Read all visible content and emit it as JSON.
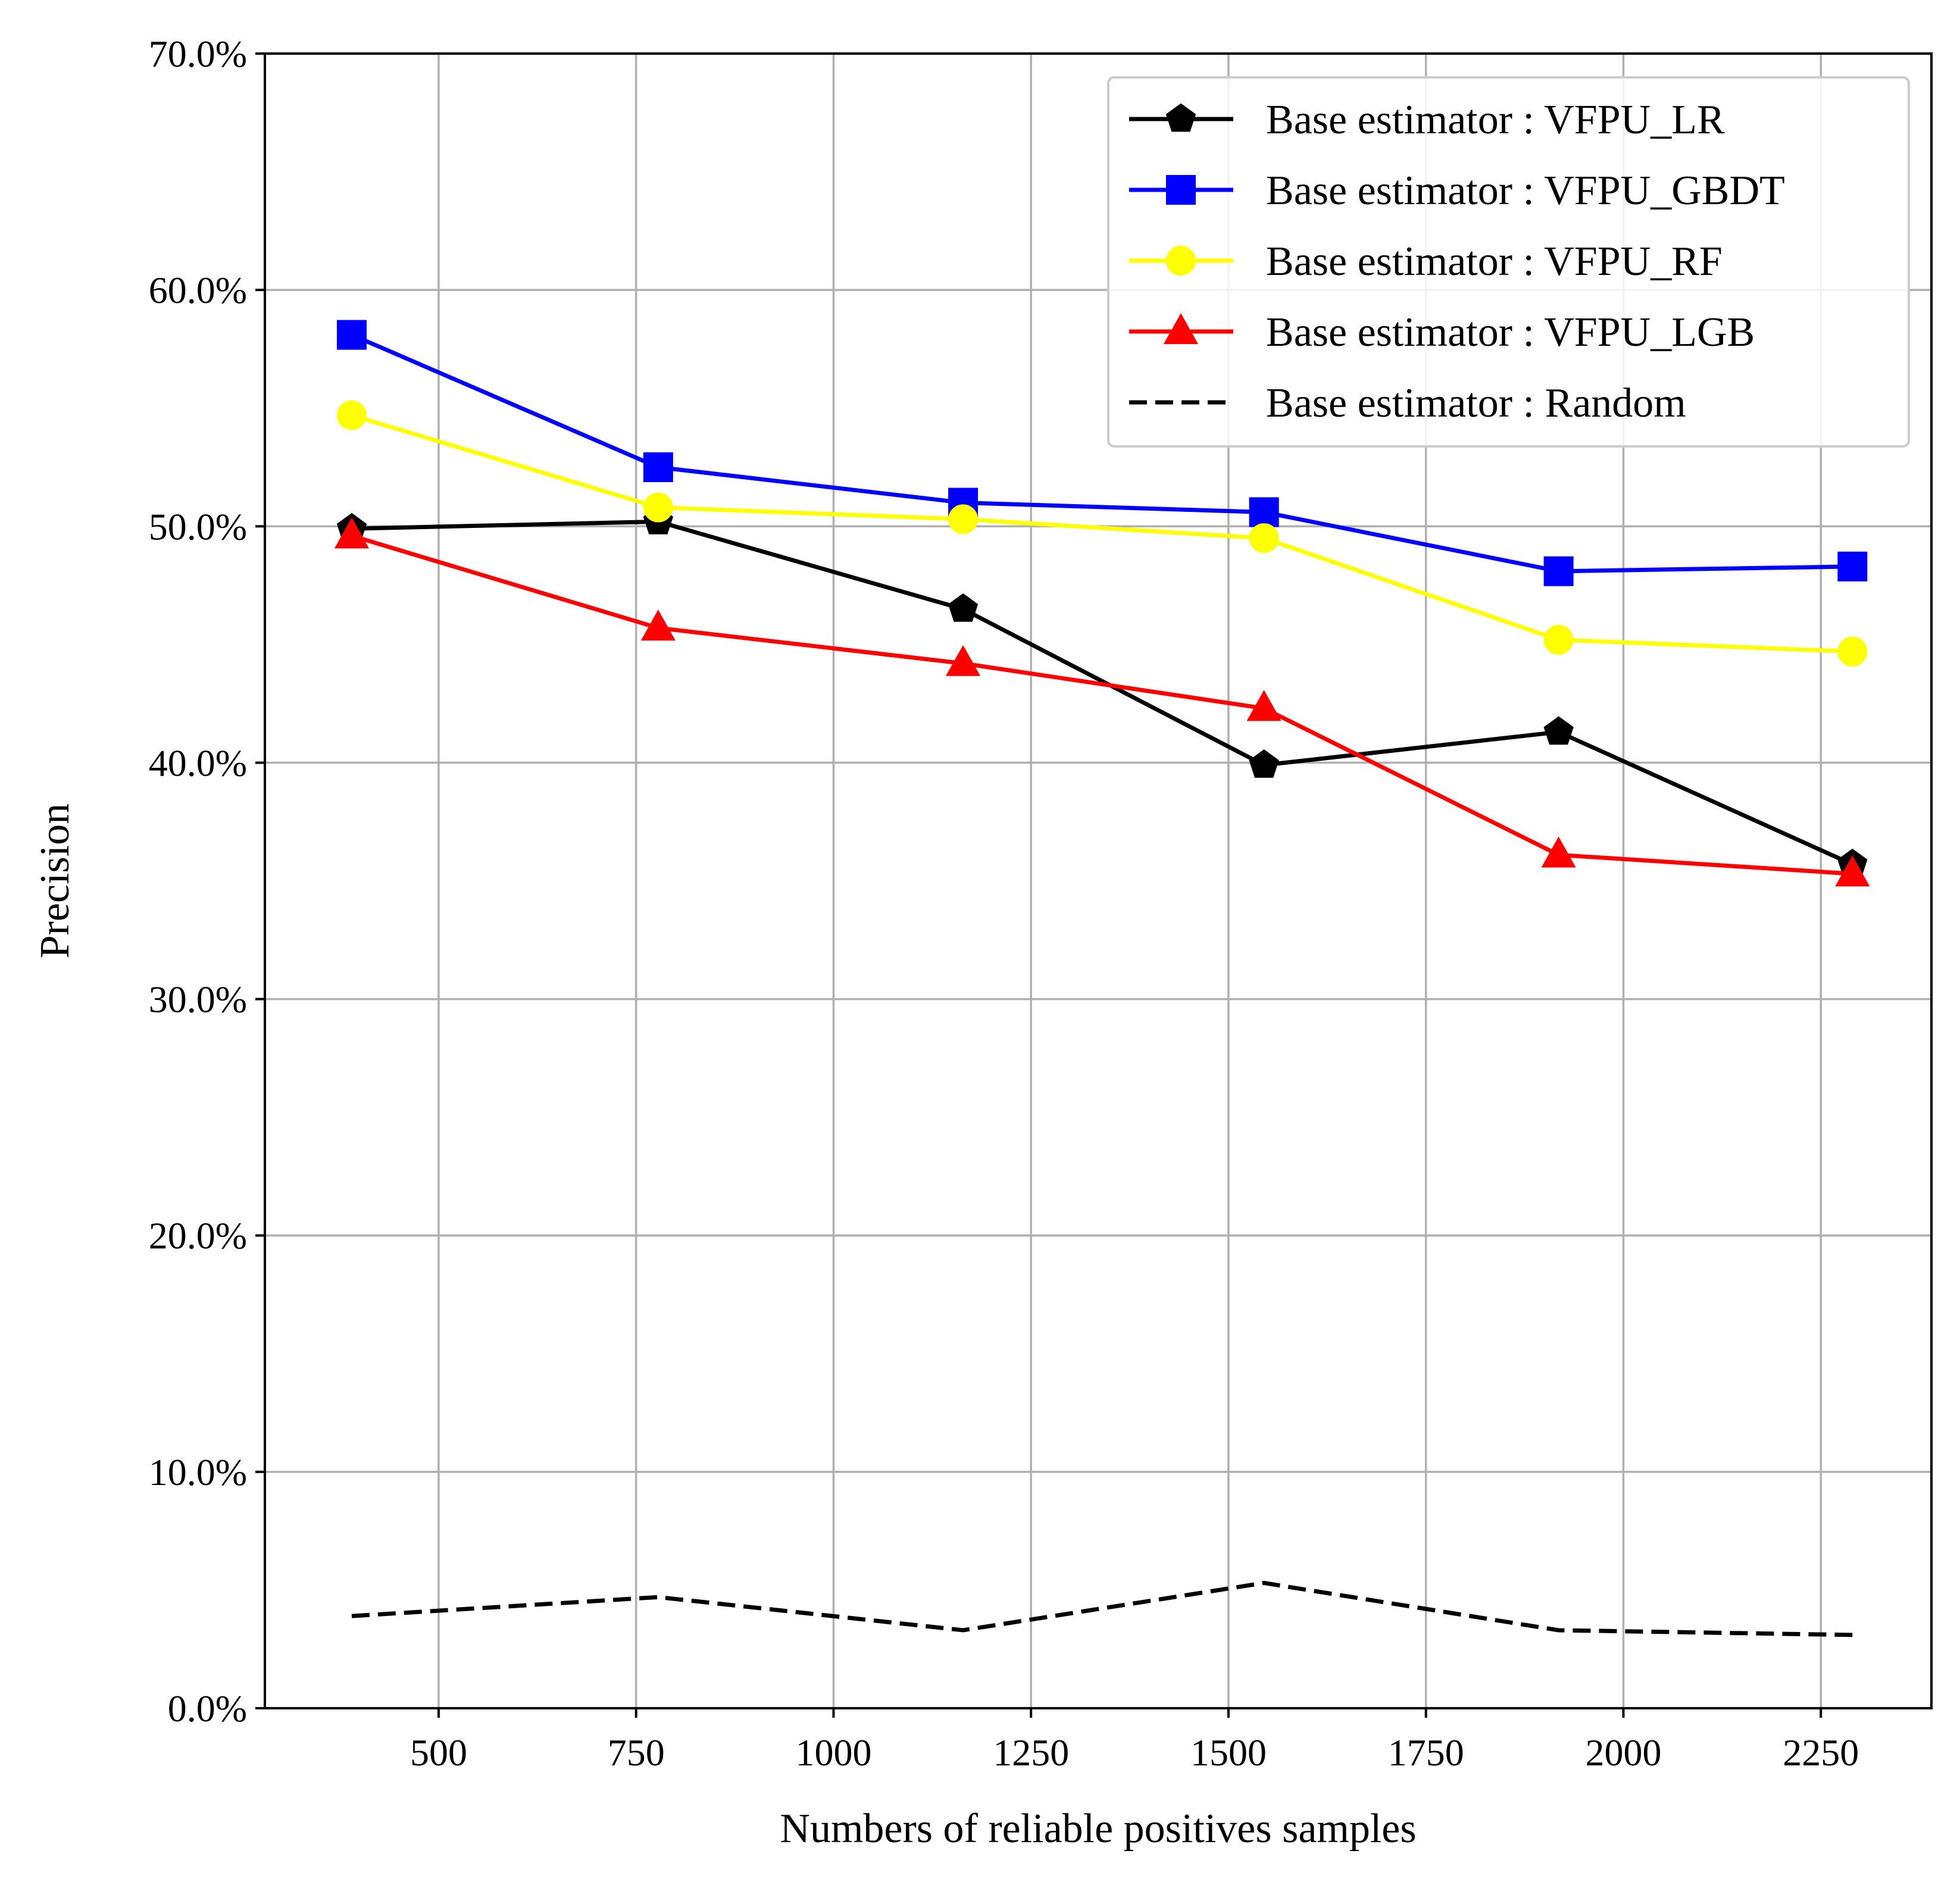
{
  "chart_data": {
    "type": "line",
    "xlabel": "Numbers of reliable positives samples",
    "ylabel": "Precision",
    "xlim": [
      280,
      2390
    ],
    "ylim": [
      0,
      70
    ],
    "x_ticks": [
      500,
      750,
      1000,
      1250,
      1500,
      1750,
      2000,
      2250
    ],
    "y_ticks": [
      0,
      10,
      20,
      30,
      40,
      50,
      60,
      70
    ],
    "y_tick_labels": [
      "0.0%",
      "10.0%",
      "20.0%",
      "30.0%",
      "40.0%",
      "50.0%",
      "60.0%",
      "70.0%"
    ],
    "grid": true,
    "legend_position": "top-right",
    "x": [
      390,
      778,
      1164,
      1545,
      1918,
      2290
    ],
    "series": [
      {
        "name": "Base estimator : VFPU_LR",
        "color": "#000000",
        "marker": "pentagon",
        "dashed": false,
        "values": [
          49.9,
          50.2,
          46.5,
          39.9,
          41.3,
          35.7
        ]
      },
      {
        "name": "Base estimator : VFPU_GBDT",
        "color": "#0000ff",
        "marker": "square",
        "dashed": false,
        "values": [
          58.1,
          52.5,
          51.0,
          50.6,
          48.1,
          48.3
        ]
      },
      {
        "name": "Base estimator : VFPU_RF",
        "color": "#ffff00",
        "marker": "circle",
        "dashed": false,
        "values": [
          54.7,
          50.8,
          50.3,
          49.5,
          45.2,
          44.7
        ]
      },
      {
        "name": "Base estimator : VFPU_LGB",
        "color": "#ff0000",
        "marker": "triangle",
        "dashed": false,
        "values": [
          49.6,
          45.7,
          44.2,
          42.3,
          36.1,
          35.3
        ]
      },
      {
        "name": "Base estimator : Random",
        "color": "#000000",
        "marker": "none",
        "dashed": true,
        "values": [
          3.9,
          4.7,
          3.3,
          5.3,
          3.3,
          3.1
        ]
      }
    ]
  }
}
